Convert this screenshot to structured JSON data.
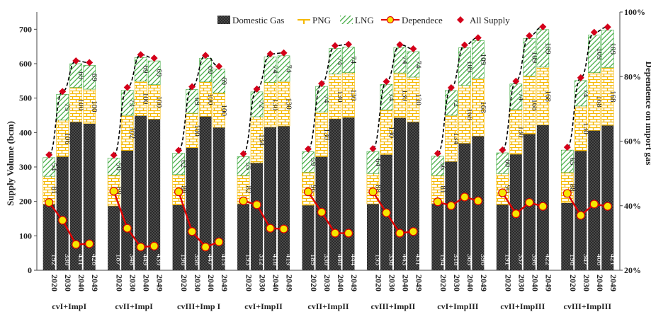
{
  "chart_data": {
    "type": "bar",
    "ylabel": "Supply Volume (bcm)",
    "y2label": "Dependence on import gas",
    "ylim": [
      0,
      750
    ],
    "yticks": [
      0,
      100,
      200,
      300,
      400,
      500,
      600,
      700
    ],
    "y2lim": [
      20,
      100
    ],
    "y2ticks": [
      "20%",
      "40%",
      "60%",
      "80%",
      "100%"
    ],
    "y2tick_values": [
      20,
      40,
      60,
      80,
      100
    ],
    "years": [
      "2020",
      "2030",
      "2040",
      "2049"
    ],
    "legend": {
      "domestic": "Domestic Gas",
      "png": "PNG",
      "lng": "LNG",
      "dependence": "Dependece",
      "all_supply": "All Supply"
    },
    "colors": {
      "domestic": "#3a3a3a",
      "png": "#f5b800",
      "lng": "#3aa83a",
      "dependence_line": "#e00000",
      "dependence_marker": "#f5e600",
      "all_supply": "#d4001a",
      "trend": "#000000"
    },
    "groups": [
      {
        "label": "cvI+ImpI",
        "domestic": [
          192,
          330,
          431,
          426
        ],
        "png": [
          81,
          106,
          100,
          100
        ],
        "lng": [
          54,
          75,
          69,
          69
        ],
        "dependence": [
          41,
          35.5,
          28,
          28.2
        ]
      },
      {
        "label": "cvII+ImpI",
        "domestic": [
          187,
          348,
          449,
          439
        ],
        "png": [
          89,
          102,
          100,
          100
        ],
        "lng": [
          50,
          73,
          69,
          69
        ],
        "dependence": [
          44.5,
          33,
          27.2,
          27.5
        ]
      },
      {
        "label": "cvIII+Imp I",
        "domestic": [
          190,
          356,
          447,
          415
        ],
        "png": [
          88,
          100,
          100,
          100
        ],
        "lng": [
          62,
          69,
          69,
          69
        ],
        "dependence": [
          44.3,
          32,
          27.2,
          28.8
        ]
      },
      {
        "label": "cvI+ImpII",
        "domestic": [
          193,
          312,
          416,
          419
        ],
        "png": [
          82,
          134,
          130,
          130
        ],
        "lng": [
          55,
          72,
          74,
          74
        ],
        "dependence": [
          41.5,
          40.3,
          33,
          32.8
        ]
      },
      {
        "label": "cvII+ImpII",
        "domestic": [
          189,
          330,
          440,
          444
        ],
        "png": [
          96,
          130,
          130,
          130
        ],
        "lng": [
          59,
          74,
          74,
          74
        ],
        "dependence": [
          44.3,
          38,
          31.5,
          31.5
        ]
      },
      {
        "label": "cvIII+ImpII",
        "domestic": [
          193,
          336,
          443,
          431
        ],
        "png": [
          88,
          130,
          130,
          130
        ],
        "lng": [
          64,
          74,
          74,
          74
        ],
        "dependence": [
          44.3,
          37.8,
          31.5,
          32
        ]
      },
      {
        "label": "cvI+ImpIII",
        "domestic": [
          194,
          316,
          369,
          390
        ],
        "png": [
          81,
          134,
          168,
          168
        ],
        "lng": [
          56,
          72,
          109,
          109
        ],
        "dependence": [
          41.2,
          40,
          42.7,
          41.5
        ]
      },
      {
        "label": "cvII+ImpIII",
        "domestic": [
          191,
          337,
          396,
          422
        ],
        "png": [
          90,
          130,
          168,
          168
        ],
        "lng": [
          60,
          74,
          109,
          109
        ],
        "dependence": [
          44,
          37.5,
          41,
          39.8
        ]
      },
      {
        "label": "cvIII+ImpIII",
        "domestic": [
          196,
          347,
          406,
          421
        ],
        "png": [
          88,
          130,
          168,
          168
        ],
        "lng": [
          65,
          74,
          109,
          109
        ],
        "dependence": [
          43.8,
          37,
          40.5,
          39.8
        ]
      }
    ]
  }
}
